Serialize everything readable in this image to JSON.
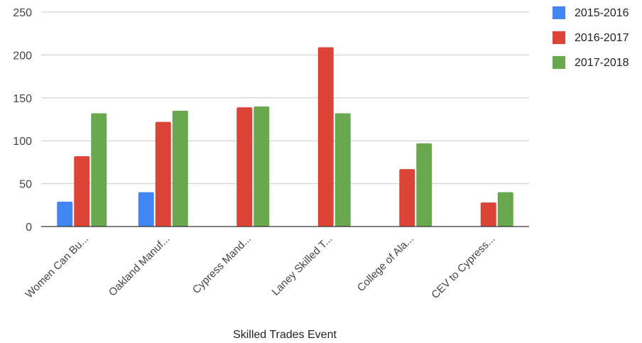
{
  "chart_data": {
    "type": "bar",
    "categories": [
      "Women Can Bu...",
      "Oakland Manuf...",
      "Cypress Mand...",
      "Laney Skilled T...",
      "College of Ala...",
      "CEV to Cypress..."
    ],
    "series": [
      {
        "name": "2015-2016",
        "color": "#4285f4",
        "values": [
          29,
          40,
          0,
          0,
          0,
          0
        ]
      },
      {
        "name": "2016-2017",
        "color": "#db4437",
        "values": [
          82,
          122,
          139,
          209,
          67,
          28
        ]
      },
      {
        "name": "2017-2018",
        "color": "#6aa84f",
        "values": [
          132,
          135,
          140,
          132,
          97,
          40
        ]
      }
    ],
    "xlabel": "Skilled Trades Event",
    "ylabel": "",
    "ylim": [
      0,
      250
    ],
    "yticks": [
      0,
      50,
      100,
      150,
      200,
      250
    ],
    "grid": true,
    "legend": "top-right"
  }
}
